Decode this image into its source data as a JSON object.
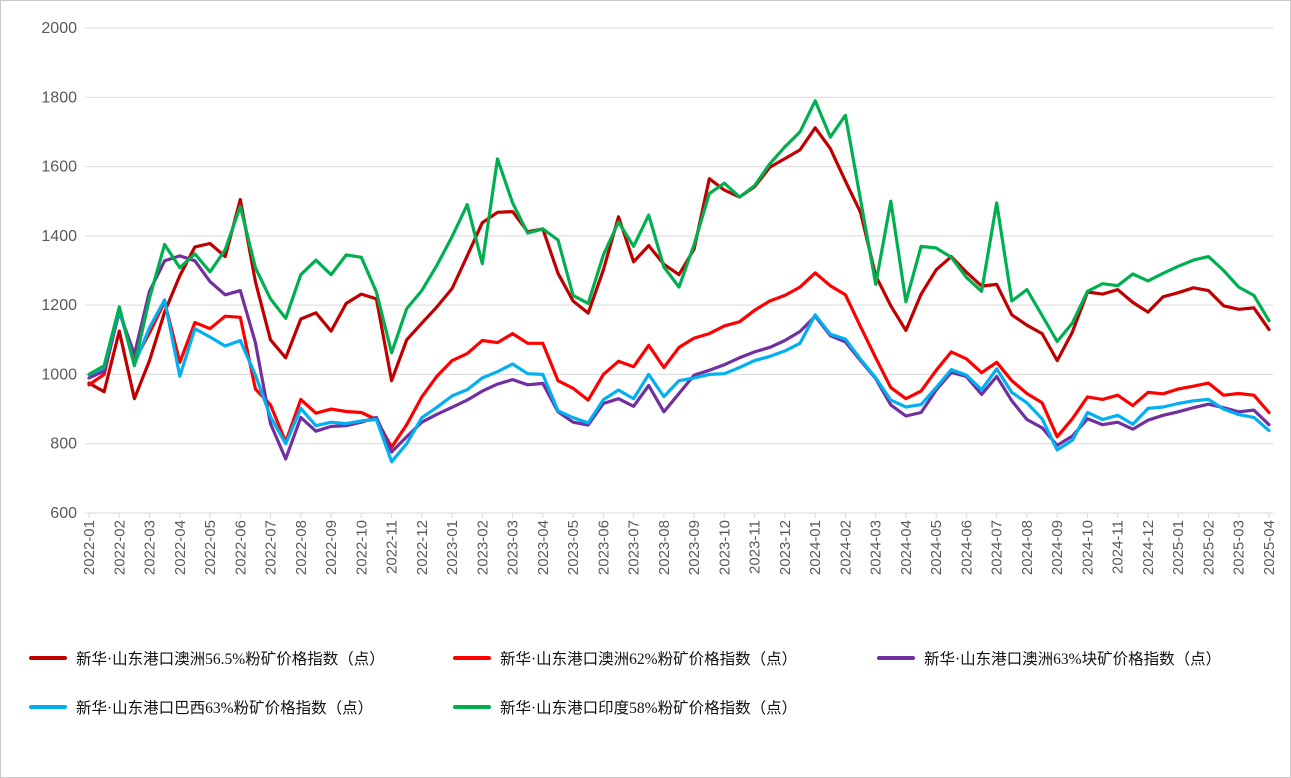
{
  "page": {
    "background": "#ffffff",
    "border_color": "#c9c9c9",
    "grid_color": "#d9d9d9",
    "tick_label_color": "#595959"
  },
  "chart_data": {
    "type": "line",
    "title": "",
    "xlabel": "",
    "ylabel": "",
    "grid": true,
    "legend_position": "bottom",
    "y_axis": {
      "min": 600,
      "max": 2000,
      "step": 200,
      "tick_labels": [
        "600",
        "800",
        "1000",
        "1200",
        "1400",
        "1600",
        "1800",
        "2000"
      ]
    },
    "x_labels": [
      "2022-01",
      "2022-02",
      "2022-03",
      "2022-04",
      "2022-05",
      "2022-06",
      "2022-07",
      "2022-08",
      "2022-09",
      "2022-10",
      "2022-11",
      "2022-12",
      "2023-01",
      "2023-02",
      "2023-03",
      "2023-04",
      "2023-05",
      "2023-06",
      "2023-07",
      "2023-08",
      "2023-09",
      "2023-10",
      "2023-11",
      "2023-12",
      "2024-01",
      "2024-02",
      "2024-03",
      "2024-04",
      "2024-05",
      "2024-06",
      "2024-07",
      "2024-08",
      "2024-09",
      "2024-10",
      "2024-11",
      "2024-12",
      "2025-01",
      "2025-02",
      "2025-03",
      "2025-04"
    ],
    "x_step_months": 0.5,
    "series": [
      {
        "name": "新华·山东港口澳洲56.5%粉矿价格指数（点）",
        "color": "#C00000",
        "values": [
          975,
          950,
          1125,
          930,
          1040,
          1180,
          1285,
          1368,
          1378,
          1340,
          1505,
          1268,
          1100,
          1048,
          1160,
          1178,
          1125,
          1205,
          1232,
          1218,
          982,
          1100,
          1148,
          1195,
          1248,
          1342,
          1438,
          1468,
          1470,
          1412,
          1420,
          1292,
          1212,
          1177,
          1302,
          1455,
          1325,
          1372,
          1318,
          1288,
          1362,
          1565,
          1532,
          1512,
          1542,
          1598,
          1623,
          1648,
          1712,
          1652,
          1558,
          1468,
          1285,
          1198,
          1127,
          1232,
          1302,
          1340,
          1295,
          1255,
          1260,
          1172,
          1142,
          1118,
          1040,
          1122,
          1238,
          1232,
          1245,
          1208,
          1180,
          1224,
          1236,
          1250,
          1242,
          1198,
          1188,
          1192,
          1130
        ]
      },
      {
        "name": "新华·山东港口澳洲62%粉矿价格指数（点）",
        "color": "#FF0000",
        "values": [
          970,
          1000,
          1185,
          1040,
          1120,
          1210,
          1035,
          1150,
          1132,
          1168,
          1165,
          958,
          912,
          805,
          928,
          888,
          900,
          893,
          890,
          870,
          790,
          855,
          935,
          995,
          1040,
          1060,
          1098,
          1092,
          1118,
          1090,
          1090,
          982,
          960,
          926,
          1000,
          1038,
          1022,
          1084,
          1020,
          1078,
          1105,
          1118,
          1140,
          1152,
          1185,
          1212,
          1228,
          1252,
          1293,
          1256,
          1230,
          1138,
          1048,
          962,
          930,
          952,
          1012,
          1065,
          1045,
          1005,
          1035,
          982,
          945,
          918,
          820,
          872,
          935,
          928,
          940,
          910,
          948,
          944,
          958,
          966,
          975,
          940,
          945,
          940,
          890
        ]
      },
      {
        "name": "新华·山东港口澳洲63%块矿价格指数（点）",
        "color": "#7030A0",
        "values": [
          990,
          1010,
          1180,
          1058,
          1240,
          1328,
          1342,
          1328,
          1268,
          1230,
          1242,
          1092,
          858,
          756,
          876,
          836,
          850,
          852,
          862,
          876,
          776,
          820,
          862,
          885,
          905,
          926,
          952,
          972,
          985,
          970,
          974,
          892,
          862,
          854,
          916,
          930,
          908,
          968,
          892,
          945,
          998,
          1012,
          1028,
          1048,
          1065,
          1078,
          1098,
          1124,
          1168,
          1112,
          1094,
          1040,
          988,
          912,
          880,
          890,
          955,
          1006,
          994,
          942,
          994,
          924,
          870,
          846,
          795,
          822,
          872,
          855,
          862,
          842,
          868,
          882,
          892,
          904,
          914,
          904,
          892,
          897,
          855
        ]
      },
      {
        "name": "新华·山东港口巴西63%粉矿价格指数（点）",
        "color": "#00B0F0",
        "values": [
          1000,
          1020,
          1188,
          1028,
          1135,
          1215,
          995,
          1132,
          1108,
          1082,
          1098,
          998,
          878,
          800,
          902,
          852,
          862,
          858,
          866,
          870,
          748,
          800,
          875,
          905,
          938,
          956,
          990,
          1008,
          1030,
          1002,
          1000,
          895,
          875,
          860,
          927,
          955,
          930,
          1000,
          936,
          982,
          990,
          1000,
          1002,
          1020,
          1040,
          1052,
          1068,
          1090,
          1172,
          1116,
          1102,
          1044,
          990,
          926,
          906,
          913,
          962,
          1014,
          998,
          956,
          1016,
          948,
          918,
          872,
          782,
          810,
          890,
          870,
          882,
          856,
          902,
          906,
          916,
          924,
          928,
          900,
          884,
          876,
          838
        ]
      },
      {
        "name": "新华·山东港口印度58%粉矿价格指数（点）",
        "color": "#00B050",
        "values": [
          1000,
          1025,
          1195,
          1025,
          1220,
          1375,
          1308,
          1348,
          1296,
          1360,
          1485,
          1308,
          1218,
          1162,
          1288,
          1330,
          1288,
          1345,
          1338,
          1238,
          1062,
          1190,
          1242,
          1315,
          1398,
          1490,
          1320,
          1622,
          1495,
          1408,
          1420,
          1388,
          1228,
          1205,
          1345,
          1440,
          1370,
          1460,
          1310,
          1252,
          1375,
          1522,
          1552,
          1512,
          1545,
          1608,
          1657,
          1700,
          1790,
          1685,
          1748,
          1505,
          1260,
          1500,
          1210,
          1370,
          1365,
          1338,
          1280,
          1240,
          1495,
          1212,
          1245,
          1170,
          1095,
          1148,
          1240,
          1262,
          1256,
          1290,
          1270,
          1292,
          1312,
          1330,
          1340,
          1300,
          1252,
          1228,
          1155
        ]
      }
    ]
  }
}
